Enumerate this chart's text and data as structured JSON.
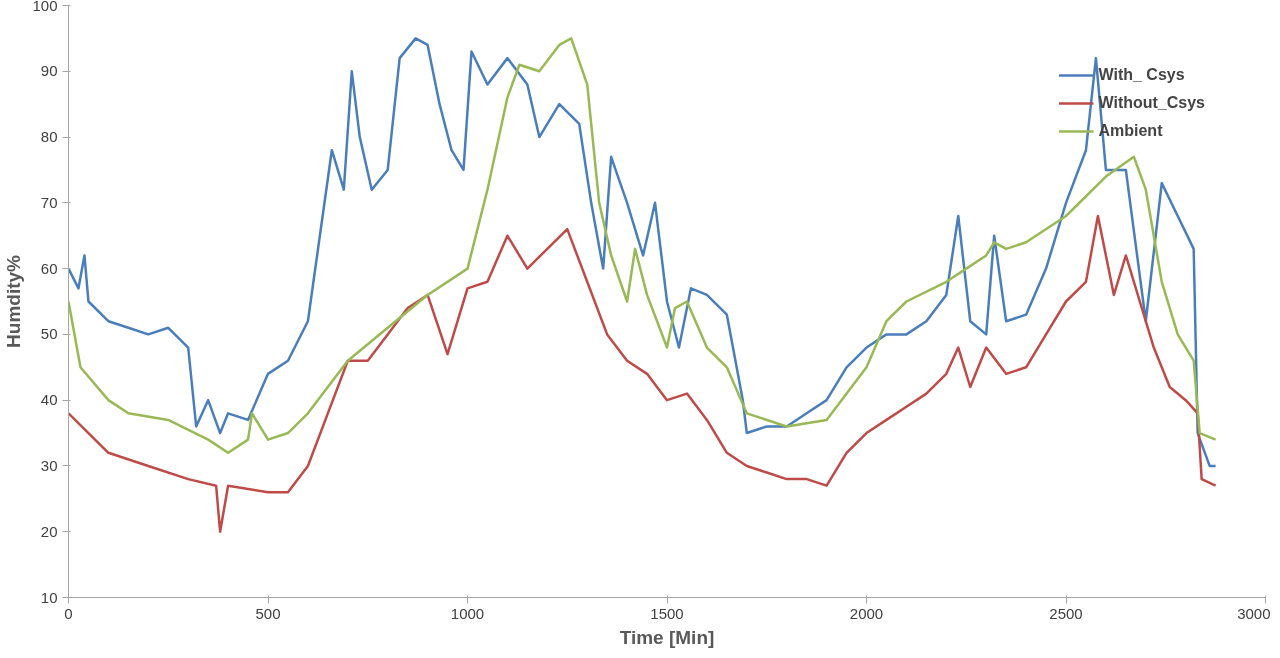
{
  "chart_data": {
    "type": "line",
    "xlabel": "Time [Min]",
    "ylabel": "Humdity%",
    "xlim": [
      0,
      3000
    ],
    "xticks": [
      0,
      500,
      1000,
      1500,
      2000,
      2500,
      3000
    ],
    "ylim": [
      10,
      100
    ],
    "yticks": [
      10,
      20,
      30,
      40,
      50,
      60,
      70,
      80,
      90,
      100
    ],
    "grid": false,
    "legend": "top right",
    "marker": "none",
    "line_style": "solid",
    "series": [
      {
        "name": "With_ Csys",
        "color": "#4a7ebb",
        "x": [
          0,
          25,
          40,
          50,
          100,
          150,
          200,
          250,
          300,
          320,
          350,
          380,
          400,
          450,
          500,
          550,
          600,
          630,
          660,
          690,
          710,
          730,
          760,
          800,
          830,
          870,
          900,
          930,
          960,
          990,
          1010,
          1050,
          1100,
          1150,
          1180,
          1230,
          1280,
          1310,
          1340,
          1360,
          1400,
          1440,
          1470,
          1500,
          1530,
          1560,
          1600,
          1650,
          1690,
          1700,
          1750,
          1800,
          1850,
          1900,
          1950,
          2000,
          2050,
          2100,
          2150,
          2200,
          2230,
          2260,
          2300,
          2320,
          2350,
          2400,
          2450,
          2500,
          2550,
          2575,
          2600,
          2650,
          2700,
          2740,
          2780,
          2820,
          2830,
          2860,
          2875
        ],
        "values": [
          60,
          57,
          62,
          55,
          52,
          51,
          50,
          51,
          48,
          36,
          40,
          35,
          38,
          37,
          44,
          46,
          52,
          65,
          78,
          72,
          90,
          80,
          72,
          75,
          92,
          95,
          94,
          85,
          78,
          75,
          93,
          88,
          92,
          88,
          80,
          85,
          82,
          70,
          60,
          77,
          70,
          62,
          70,
          55,
          48,
          57,
          56,
          53,
          40,
          35,
          36,
          36,
          38,
          40,
          45,
          48,
          50,
          50,
          52,
          56,
          68,
          52,
          50,
          65,
          52,
          53,
          60,
          70,
          78,
          92,
          75,
          75,
          52,
          73,
          68,
          63,
          35,
          30,
          30
        ]
      },
      {
        "name": "Without_Csys",
        "color": "#be4b48",
        "x": [
          0,
          50,
          100,
          200,
          300,
          370,
          380,
          400,
          500,
          550,
          600,
          650,
          700,
          750,
          800,
          850,
          900,
          950,
          1000,
          1050,
          1100,
          1150,
          1200,
          1250,
          1300,
          1350,
          1400,
          1450,
          1500,
          1550,
          1600,
          1650,
          1700,
          1750,
          1800,
          1850,
          1900,
          1950,
          2000,
          2050,
          2100,
          2150,
          2200,
          2230,
          2260,
          2300,
          2350,
          2400,
          2450,
          2500,
          2550,
          2580,
          2620,
          2650,
          2680,
          2720,
          2760,
          2800,
          2830,
          2840,
          2875
        ],
        "values": [
          38,
          35,
          32,
          30,
          28,
          27,
          20,
          27,
          26,
          26,
          30,
          38,
          46,
          46,
          50,
          54,
          56,
          47,
          57,
          58,
          65,
          60,
          63,
          66,
          58,
          50,
          46,
          44,
          40,
          41,
          37,
          32,
          30,
          29,
          28,
          28,
          27,
          32,
          35,
          37,
          39,
          41,
          44,
          48,
          42,
          48,
          44,
          45,
          50,
          55,
          58,
          68,
          56,
          62,
          56,
          48,
          42,
          40,
          38,
          28,
          27
        ]
      },
      {
        "name": "Ambient",
        "color": "#98b954",
        "x": [
          0,
          30,
          100,
          150,
          250,
          350,
          400,
          450,
          460,
          500,
          550,
          600,
          700,
          800,
          900,
          1000,
          1050,
          1100,
          1130,
          1180,
          1230,
          1260,
          1300,
          1330,
          1360,
          1400,
          1420,
          1450,
          1500,
          1520,
          1550,
          1600,
          1650,
          1700,
          1800,
          1900,
          2000,
          2050,
          2100,
          2200,
          2250,
          2300,
          2320,
          2350,
          2400,
          2500,
          2600,
          2670,
          2700,
          2740,
          2780,
          2820,
          2835,
          2875
        ],
        "values": [
          55,
          45,
          40,
          38,
          37,
          34,
          32,
          34,
          38,
          34,
          35,
          38,
          46,
          51,
          56,
          60,
          72,
          86,
          91,
          90,
          94,
          95,
          88,
          70,
          62,
          55,
          63,
          56,
          48,
          54,
          55,
          48,
          45,
          38,
          36,
          37,
          45,
          52,
          55,
          58,
          60,
          62,
          64,
          63,
          64,
          68,
          74,
          77,
          72,
          58,
          50,
          46,
          35,
          34
        ]
      }
    ]
  }
}
